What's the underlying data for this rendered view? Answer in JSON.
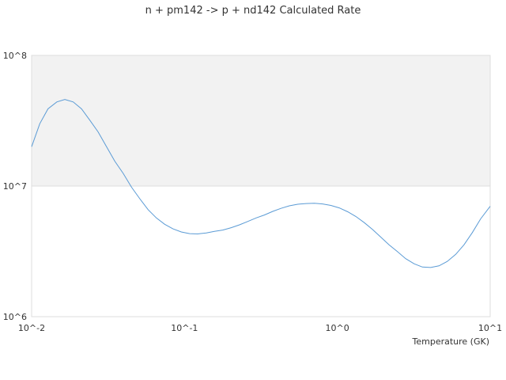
{
  "chart_data": {
    "type": "line",
    "title": "n + pm142 -> p + nd142 Calculated Rate",
    "xlabel": "Temperature (GK)",
    "ylabel": "",
    "x_scale": "log",
    "y_scale": "log",
    "xlim": [
      0.01,
      10
    ],
    "ylim": [
      1000000,
      100000000
    ],
    "x_ticks": [
      0.01,
      0.1,
      1,
      10
    ],
    "x_tick_labels": [
      "10^-2",
      "10^-1",
      "10^0",
      "10^1"
    ],
    "y_ticks": [
      1000000,
      10000000,
      100000000
    ],
    "y_tick_labels": [
      "10^6",
      "10^7",
      "10^8"
    ],
    "grid": false,
    "shaded_band": [
      10000000,
      100000000
    ],
    "series": [
      {
        "color": "#5b9bd5",
        "x": [
          0.01,
          0.0113,
          0.0128,
          0.0146,
          0.0165,
          0.0187,
          0.0212,
          0.024,
          0.0272,
          0.0309,
          0.035,
          0.0397,
          0.045,
          0.051,
          0.0578,
          0.0655,
          0.0742,
          0.0841,
          0.0953,
          0.108,
          0.122,
          0.139,
          0.157,
          0.178,
          0.202,
          0.229,
          0.259,
          0.294,
          0.333,
          0.378,
          0.428,
          0.485,
          0.55,
          0.624,
          0.707,
          0.801,
          0.908,
          1.03,
          1.17,
          1.32,
          1.5,
          1.7,
          1.93,
          2.18,
          2.47,
          2.8,
          3.18,
          3.6,
          4.08,
          4.63,
          5.24,
          5.95,
          6.74,
          7.64,
          8.66,
          10.0
        ],
        "y": [
          20000000,
          30000000,
          39000000,
          44000000,
          46000000,
          44000000,
          39000000,
          32000000,
          26000000,
          20000000,
          15500000,
          12500000,
          9800000,
          8000000,
          6600000,
          5700000,
          5100000,
          4700000,
          4450000,
          4320000,
          4300000,
          4380000,
          4500000,
          4600000,
          4800000,
          5050000,
          5350000,
          5700000,
          6000000,
          6400000,
          6750000,
          7050000,
          7250000,
          7350000,
          7380000,
          7300000,
          7100000,
          6800000,
          6350000,
          5850000,
          5250000,
          4650000,
          4050000,
          3550000,
          3150000,
          2780000,
          2540000,
          2400000,
          2380000,
          2450000,
          2650000,
          3000000,
          3550000,
          4400000,
          5600000,
          7000000
        ]
      }
    ]
  }
}
